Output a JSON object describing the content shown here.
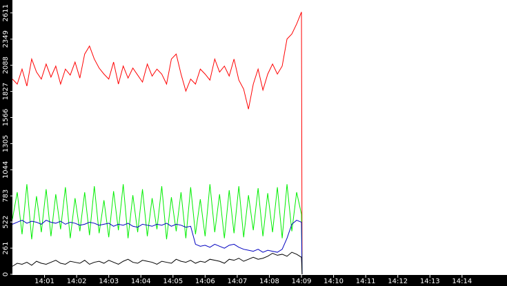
{
  "chart_data": {
    "type": "line",
    "x": [
      840,
      840.15,
      840.3,
      840.45,
      840.6,
      840.75,
      840.9,
      841.05,
      841.2,
      841.35,
      841.5,
      841.65,
      841.8,
      841.95,
      842.1,
      842.25,
      842.4,
      842.55,
      842.7,
      842.85,
      843,
      843.15,
      843.3,
      843.45,
      843.6,
      843.75,
      843.9,
      844.05,
      844.2,
      844.35,
      844.5,
      844.65,
      844.8,
      844.95,
      845.1,
      845.25,
      845.4,
      845.55,
      845.7,
      845.85,
      846,
      846.15,
      846.3,
      846.45,
      846.6,
      846.75,
      846.9,
      847.05,
      847.2,
      847.35,
      847.5,
      847.65,
      847.8,
      847.95,
      848.1,
      848.25,
      848.4,
      848.55,
      848.7,
      848.85,
      849,
      849.02
    ],
    "series": [
      {
        "color": "#ff0000",
        "values": [
          1950,
          1900,
          2050,
          1880,
          2150,
          2020,
          1950,
          2100,
          1970,
          2080,
          1900,
          2050,
          1990,
          2120,
          1960,
          2200,
          2280,
          2150,
          2060,
          2000,
          1950,
          2120,
          1900,
          2080,
          1960,
          2060,
          1990,
          1920,
          2100,
          1980,
          2050,
          2000,
          1900,
          2150,
          2200,
          2000,
          1830,
          1950,
          1900,
          2050,
          2000,
          1940,
          2150,
          2020,
          2080,
          1980,
          2150,
          1940,
          1850,
          1650,
          1900,
          2050,
          1840,
          2000,
          2100,
          2000,
          2080,
          2350,
          2400,
          2500,
          2620,
          0
        ]
      },
      {
        "color": "#00ee00",
        "values": [
          550,
          820,
          400,
          900,
          350,
          780,
          420,
          850,
          380,
          800,
          450,
          870,
          360,
          760,
          430,
          820,
          390,
          880,
          410,
          740,
          370,
          830,
          440,
          900,
          360,
          790,
          420,
          850,
          380,
          760,
          450,
          880,
          350,
          770,
          430,
          820,
          360,
          870,
          400,
          750,
          380,
          900,
          420,
          800,
          360,
          840,
          410,
          880,
          370,
          790,
          440,
          860,
          380,
          810,
          420,
          870,
          360,
          900,
          430,
          820,
          600,
          0
        ]
      },
      {
        "color": "#0000c0",
        "values": [
          500,
          520,
          540,
          510,
          530,
          520,
          500,
          540,
          520,
          510,
          530,
          500,
          520,
          510,
          490,
          500,
          520,
          510,
          490,
          500,
          510,
          480,
          500,
          490,
          510,
          480,
          470,
          500,
          490,
          480,
          500,
          490,
          510,
          480,
          500,
          490,
          470,
          480,
          300,
          280,
          290,
          270,
          300,
          280,
          260,
          290,
          300,
          270,
          250,
          240,
          230,
          250,
          220,
          240,
          230,
          220,
          250,
          360,
          500,
          540,
          520,
          0
        ]
      },
      {
        "color": "#000000",
        "values": [
          80,
          110,
          100,
          120,
          90,
          130,
          110,
          100,
          120,
          140,
          110,
          100,
          130,
          120,
          110,
          140,
          100,
          120,
          130,
          110,
          140,
          120,
          100,
          130,
          150,
          120,
          110,
          140,
          130,
          120,
          100,
          130,
          120,
          110,
          150,
          130,
          120,
          140,
          110,
          130,
          120,
          150,
          140,
          130,
          110,
          150,
          140,
          160,
          130,
          150,
          170,
          150,
          160,
          180,
          210,
          190,
          200,
          180,
          220,
          200,
          170,
          0
        ]
      }
    ],
    "xlim": [
      840,
      855.4
    ],
    "xticks": [
      {
        "value": 841,
        "label": "14:01"
      },
      {
        "value": 842,
        "label": "14:02"
      },
      {
        "value": 843,
        "label": "14:03"
      },
      {
        "value": 844,
        "label": "14:04"
      },
      {
        "value": 845,
        "label": "14:05"
      },
      {
        "value": 846,
        "label": "14:06"
      },
      {
        "value": 847,
        "label": "14:07"
      },
      {
        "value": 848,
        "label": "14:08"
      },
      {
        "value": 849,
        "label": "14:09"
      },
      {
        "value": 850,
        "label": "14:10"
      },
      {
        "value": 851,
        "label": "14:11"
      },
      {
        "value": 852,
        "label": "14:12"
      },
      {
        "value": 853,
        "label": "14:13"
      },
      {
        "value": 854,
        "label": "14:14"
      }
    ],
    "ylim": [
      0,
      2740
    ],
    "yticks": [
      0,
      261,
      522,
      783,
      1044,
      1305,
      1566,
      1827,
      2088,
      2349,
      2611
    ]
  }
}
